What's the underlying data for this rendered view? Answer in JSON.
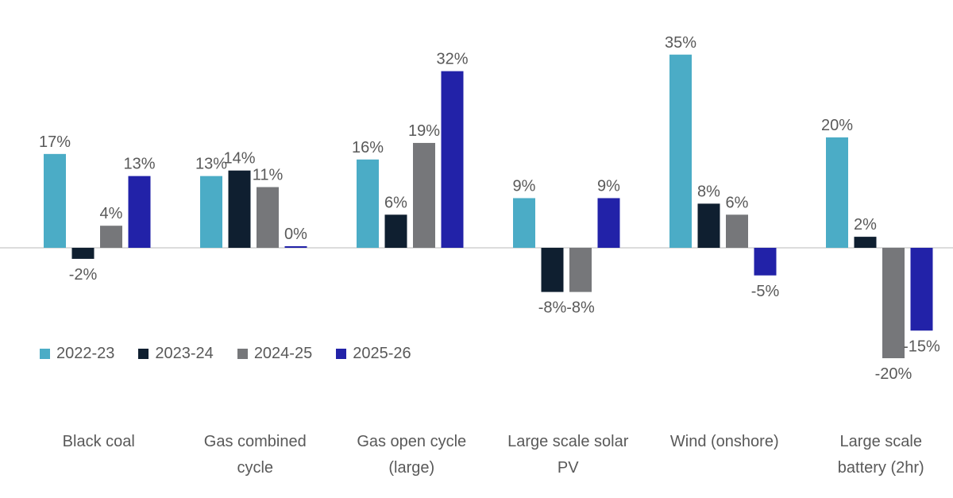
{
  "chart_data": {
    "type": "bar",
    "categories": [
      "Black coal",
      "Gas combined cycle",
      "Gas open cycle (large)",
      "Large scale solar PV",
      "Wind (onshore)",
      "Large scale battery (2hr)"
    ],
    "category_lines": [
      [
        "Black coal"
      ],
      [
        "Gas combined",
        "cycle"
      ],
      [
        "Gas open cycle",
        "(large)"
      ],
      [
        "Large scale solar",
        "PV"
      ],
      [
        "Wind (onshore)"
      ],
      [
        "Large scale",
        "battery (2hr)"
      ]
    ],
    "series": [
      {
        "name": "2022-23",
        "color": "#4bacc6",
        "values": [
          17,
          13,
          16,
          9,
          35,
          20
        ]
      },
      {
        "name": "2023-24",
        "color": "#0f1f30",
        "values": [
          -2,
          14,
          6,
          -8,
          8,
          2
        ]
      },
      {
        "name": "2024-25",
        "color": "#76777a",
        "values": [
          4,
          11,
          19,
          -8,
          6,
          -20
        ]
      },
      {
        "name": "2025-26",
        "color": "#2222a8",
        "values": [
          13,
          0,
          32,
          9,
          -5,
          -15
        ]
      }
    ],
    "value_suffix": "%",
    "legend_position": "left-middle",
    "grid": false
  }
}
